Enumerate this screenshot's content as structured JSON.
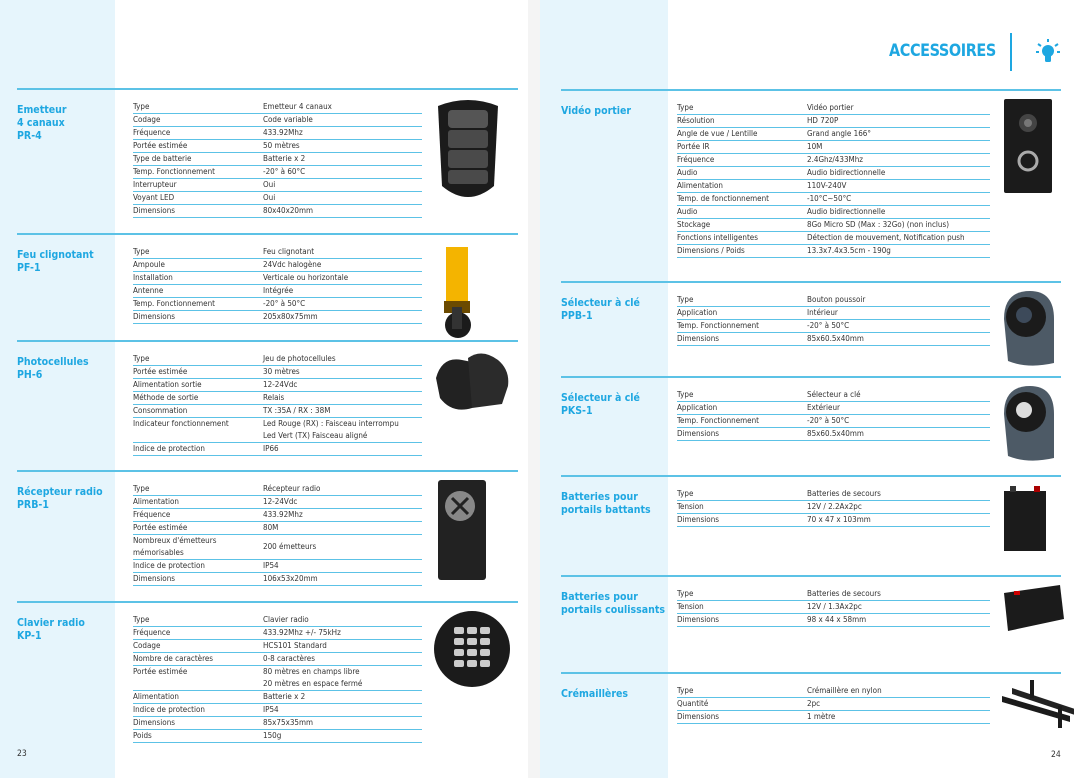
{
  "header": {
    "title": "ACCESSOIRES",
    "icon": "lightbulb-icon"
  },
  "colors": {
    "accent": "#1ea7e1",
    "band": "#e6f5fc",
    "rule": "#5cc2e6"
  },
  "pages": {
    "left_number": "23",
    "right_number": "24"
  },
  "left_sections": [
    {
      "title": "Emetteur\n4 canaux\nPR-4",
      "image": "remote-4-button",
      "rows": [
        [
          "Type",
          "Emetteur 4 canaux"
        ],
        [
          "Codage",
          "Code variable"
        ],
        [
          "Fréquence",
          "433.92Mhz"
        ],
        [
          "Portée estimée",
          "50 mètres"
        ],
        [
          "Type de batterie",
          "Batterie x 2"
        ],
        [
          "Temp. Fonctionnement",
          "-20° à 60°C"
        ],
        [
          "Interrupteur",
          "Oui"
        ],
        [
          "Voyant LED",
          "Oui"
        ],
        [
          "Dimensions",
          "80x40x20mm"
        ]
      ]
    },
    {
      "title": "Feu clignotant\nPF-1",
      "image": "flashing-light",
      "rows": [
        [
          "Type",
          "Feu clignotant"
        ],
        [
          "Ampoule",
          "24Vdc halogène"
        ],
        [
          "Installation",
          "Verticale ou horizontale"
        ],
        [
          "Antenne",
          "Intégrée"
        ],
        [
          "Temp. Fonctionnement",
          "-20° à 50°C"
        ],
        [
          "Dimensions",
          "205x80x75mm"
        ]
      ]
    },
    {
      "title": "Photocellules\nPH-6",
      "image": "photocells",
      "rows": [
        [
          "Type",
          "Jeu de photocellules"
        ],
        [
          "Portée estimée",
          "30 mètres"
        ],
        [
          "Alimentation sortie",
          "12-24Vdc"
        ],
        [
          "Méthode de sortie",
          "Relais"
        ],
        [
          "Consommation",
          "TX :35A / RX : 38M"
        ],
        [
          "Indicateur fonctionnement",
          "Led Rouge (RX) : Faisceau interrompu\nLed Vert (TX) Faisceau aligné"
        ],
        [
          "Indice de protection",
          "IP66"
        ]
      ]
    },
    {
      "title": "Récepteur radio\nPRB-1",
      "image": "radio-receiver",
      "rows": [
        [
          "Type",
          "Récepteur radio"
        ],
        [
          "Alimentation",
          "12-24Vdc"
        ],
        [
          "Fréquence",
          "433.92Mhz"
        ],
        [
          "Portée estimée",
          "80M"
        ],
        [
          "Nombreux d'émetteurs\nmémorisables",
          "200 émetteurs"
        ],
        [
          "Indice de protection",
          "IP54"
        ],
        [
          "Dimensions",
          "106x53x20mm"
        ]
      ]
    },
    {
      "title": "Clavier radio\nKP-1",
      "image": "radio-keypad",
      "rows": [
        [
          "Type",
          "Clavier radio"
        ],
        [
          "Fréquence",
          "433.92Mhz +/- 75kHz"
        ],
        [
          "Codage",
          "HCS101 Standard"
        ],
        [
          "Nombre de caractères",
          "0-8 caractères"
        ],
        [
          "Portée estimée",
          "80 mètres en champs libre\n20 mètres en espace fermé"
        ],
        [
          "Alimentation",
          "Batterie x 2"
        ],
        [
          "Indice de protection",
          "IP54"
        ],
        [
          "Dimensions",
          "85x75x35mm"
        ],
        [
          "Poids",
          "150g"
        ]
      ]
    }
  ],
  "right_sections": [
    {
      "title": "Vidéo portier",
      "image": "video-doorbell",
      "rows": [
        [
          "Type",
          "Vidéo portier"
        ],
        [
          "Résolution",
          "HD 720P"
        ],
        [
          "Angle de vue / Lentille",
          "Grand angle 166°"
        ],
        [
          "Portée IR",
          "10M"
        ],
        [
          "Fréquence",
          "2.4Ghz/433Mhz"
        ],
        [
          "Audio",
          "Audio bidirectionnelle"
        ],
        [
          "Alimentation",
          "110V-240V"
        ],
        [
          "Temp. de fonctionnement",
          "-10°C~50°C"
        ],
        [
          "Audio",
          "Audio bidirectionnelle"
        ],
        [
          "Stockage",
          "8Go Micro SD (Max : 32Go)  (non inclus)"
        ],
        [
          "Fonctions intelligentes",
          "Détection de mouvement, Notification push"
        ],
        [
          "Dimensions / Poids",
          "13.3x7.4x3.5cm - 190g"
        ]
      ]
    },
    {
      "title": "Sélecteur à clé\nPPB-1",
      "image": "push-button-selector",
      "rows": [
        [
          "Type",
          "Bouton poussoir"
        ],
        [
          "Application",
          "Intérieur"
        ],
        [
          "Temp. Fonctionnement",
          "-20° à 50°C"
        ],
        [
          "Dimensions",
          "85x60.5x40mm"
        ]
      ]
    },
    {
      "title": "Sélecteur à clé\nPKS-1",
      "image": "key-selector",
      "rows": [
        [
          "Type",
          "Sélecteur a clé"
        ],
        [
          "Application",
          "Extérieur"
        ],
        [
          "Temp. Fonctionnement",
          "-20° à 50°C"
        ],
        [
          "Dimensions",
          "85x60.5x40mm"
        ]
      ]
    },
    {
      "title": "Batteries pour\nportails battants",
      "image": "battery-tall",
      "rows": [
        [
          "Type",
          "Batteries de secours"
        ],
        [
          "Tension",
          "12V / 2.2Ax2pc"
        ],
        [
          "Dimensions",
          "70 x 47 x 103mm"
        ]
      ]
    },
    {
      "title": "Batteries pour\nportails coulissants",
      "image": "battery-wide",
      "rows": [
        [
          "Type",
          "Batteries de secours"
        ],
        [
          "Tension",
          "12V / 1.3Ax2pc"
        ],
        [
          "Dimensions",
          "98 x 44 x 58mm"
        ]
      ]
    },
    {
      "title": "Crémaillères",
      "image": "gear-racks",
      "rows": [
        [
          "Type",
          "Crémaillère en nylon"
        ],
        [
          "Quantité",
          "2pc"
        ],
        [
          "Dimensions",
          "1 mètre"
        ]
      ]
    }
  ]
}
